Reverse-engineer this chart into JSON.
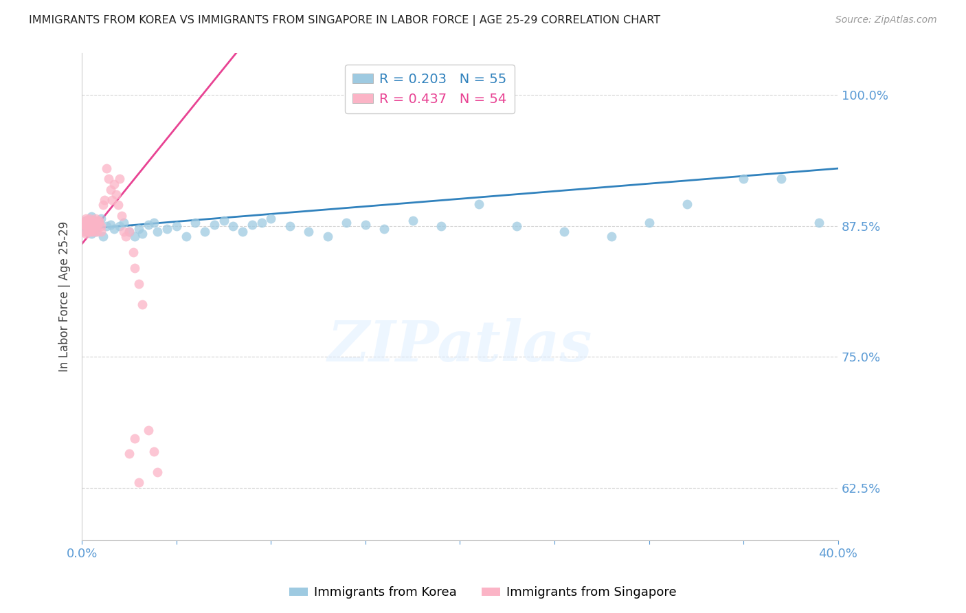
{
  "title": "IMMIGRANTS FROM KOREA VS IMMIGRANTS FROM SINGAPORE IN LABOR FORCE | AGE 25-29 CORRELATION CHART",
  "source": "Source: ZipAtlas.com",
  "ylabel": "In Labor Force | Age 25-29",
  "xlim": [
    0.0,
    0.4
  ],
  "ylim": [
    0.575,
    1.04
  ],
  "yticks": [
    0.625,
    0.75,
    0.875,
    1.0
  ],
  "xticks": [
    0.0,
    0.05,
    0.1,
    0.15,
    0.2,
    0.25,
    0.3,
    0.35,
    0.4
  ],
  "korea_R": 0.203,
  "korea_N": 55,
  "singapore_R": 0.437,
  "singapore_N": 54,
  "korea_color": "#9ecae1",
  "singapore_color": "#fbb4c6",
  "korea_line_color": "#3182bd",
  "singapore_line_color": "#e84393",
  "axis_color": "#5b9bd5",
  "grid_color": "#c8c8c8",
  "background_color": "#ffffff",
  "korea_x": [
    0.001,
    0.002,
    0.002,
    0.003,
    0.003,
    0.004,
    0.005,
    0.005,
    0.006,
    0.007,
    0.008,
    0.009,
    0.01,
    0.011,
    0.013,
    0.015,
    0.017,
    0.02,
    0.022,
    0.025,
    0.028,
    0.03,
    0.032,
    0.035,
    0.038,
    0.04,
    0.045,
    0.05,
    0.055,
    0.06,
    0.065,
    0.07,
    0.075,
    0.08,
    0.085,
    0.09,
    0.095,
    0.1,
    0.11,
    0.12,
    0.13,
    0.14,
    0.15,
    0.16,
    0.175,
    0.19,
    0.21,
    0.23,
    0.255,
    0.28,
    0.3,
    0.32,
    0.35,
    0.37,
    0.39
  ],
  "korea_y": [
    0.876,
    0.87,
    0.88,
    0.872,
    0.878,
    0.875,
    0.868,
    0.884,
    0.876,
    0.87,
    0.874,
    0.878,
    0.882,
    0.865,
    0.875,
    0.876,
    0.872,
    0.875,
    0.878,
    0.87,
    0.865,
    0.872,
    0.868,
    0.876,
    0.878,
    0.87,
    0.872,
    0.875,
    0.865,
    0.878,
    0.87,
    0.876,
    0.88,
    0.875,
    0.87,
    0.876,
    0.878,
    0.882,
    0.875,
    0.87,
    0.865,
    0.878,
    0.876,
    0.872,
    0.88,
    0.875,
    0.896,
    0.875,
    0.87,
    0.865,
    0.878,
    0.896,
    0.92,
    0.92,
    0.878
  ],
  "singapore_x": [
    0.001,
    0.001,
    0.001,
    0.002,
    0.002,
    0.002,
    0.002,
    0.003,
    0.003,
    0.003,
    0.003,
    0.004,
    0.004,
    0.004,
    0.005,
    0.005,
    0.005,
    0.005,
    0.006,
    0.006,
    0.006,
    0.007,
    0.007,
    0.007,
    0.008,
    0.008,
    0.009,
    0.009,
    0.01,
    0.01,
    0.011,
    0.012,
    0.013,
    0.014,
    0.015,
    0.016,
    0.017,
    0.018,
    0.019,
    0.02,
    0.021,
    0.022,
    0.023,
    0.025,
    0.027,
    0.028,
    0.03,
    0.032,
    0.035,
    0.038,
    0.04,
    0.025,
    0.028,
    0.03
  ],
  "singapore_y": [
    0.876,
    0.87,
    0.878,
    0.875,
    0.868,
    0.88,
    0.882,
    0.878,
    0.875,
    0.87,
    0.88,
    0.876,
    0.87,
    0.882,
    0.878,
    0.875,
    0.87,
    0.88,
    0.876,
    0.87,
    0.878,
    0.88,
    0.875,
    0.882,
    0.876,
    0.87,
    0.878,
    0.88,
    0.875,
    0.87,
    0.895,
    0.9,
    0.93,
    0.92,
    0.91,
    0.9,
    0.915,
    0.905,
    0.895,
    0.92,
    0.885,
    0.87,
    0.865,
    0.87,
    0.85,
    0.835,
    0.82,
    0.8,
    0.68,
    0.66,
    0.64,
    0.658,
    0.672,
    0.63
  ],
  "korea_trend": [
    0.0,
    0.4,
    0.872,
    0.93
  ],
  "singapore_trend_x": [
    0.0,
    0.03
  ],
  "singapore_trend_y": [
    0.858,
    0.925
  ]
}
